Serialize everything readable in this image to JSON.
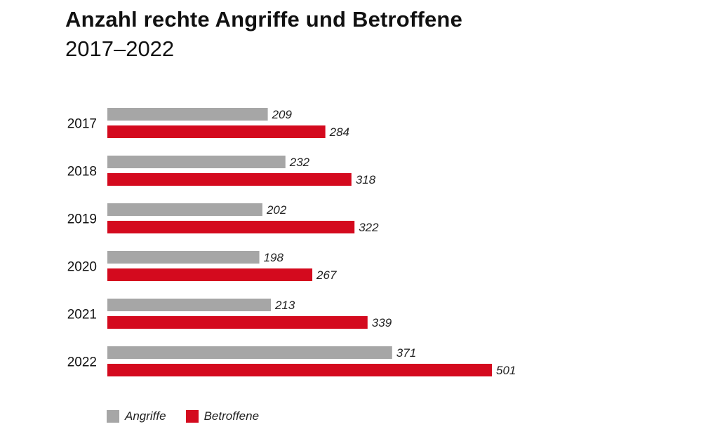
{
  "chart_data": {
    "type": "bar",
    "orientation": "horizontal",
    "title": "Anzahl rechte Angriffe und Betroffene",
    "subtitle": "2017–2022",
    "categories": [
      "2017",
      "2018",
      "2019",
      "2020",
      "2021",
      "2022"
    ],
    "series": [
      {
        "name": "Angriffe",
        "color": "#a6a6a6",
        "values": [
          209,
          232,
          202,
          198,
          213,
          371
        ]
      },
      {
        "name": "Betroffene",
        "color": "#d40a1e",
        "values": [
          284,
          318,
          322,
          267,
          339,
          501
        ]
      }
    ],
    "xlim": [
      0,
      501
    ],
    "grid": false,
    "legend_position": "bottom-left"
  }
}
